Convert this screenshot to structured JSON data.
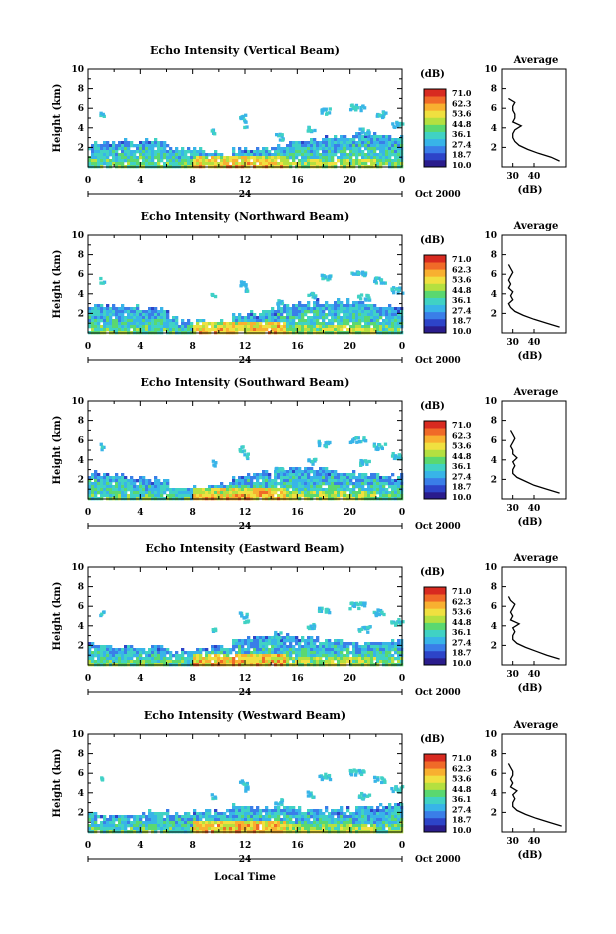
{
  "figure": {
    "xaxis_label": "Local Time",
    "day_label": "24",
    "month_year_label": "Oct 2000",
    "avg_title": "Average",
    "avg_unit": "(dB)",
    "colorbar_unit": "(dB)",
    "ylabel": "Height (km)"
  },
  "colorbar": {
    "tick_labels": [
      "71.0",
      "62.3",
      "53.6",
      "44.8",
      "36.1",
      "27.4",
      "18.7",
      "10.0"
    ],
    "colors": [
      "#2a1c8c",
      "#2d44c8",
      "#3a7ee8",
      "#38b4e8",
      "#40d2c4",
      "#5ad870",
      "#b4e040",
      "#f0e040",
      "#f8b030",
      "#f06a28",
      "#d82a20"
    ]
  },
  "chart_data": [
    {
      "type": "heatmap",
      "title": "Echo Intensity (Vertical Beam)",
      "xlabel": "Local Time",
      "ylabel": "Height (km)",
      "xlim": [
        0,
        24
      ],
      "ylim": [
        0,
        10
      ],
      "x_ticks": [
        "0",
        "4",
        "8",
        "12",
        "16",
        "20",
        "0"
      ],
      "y_ticks": [
        "2",
        "4",
        "6",
        "8",
        "10"
      ],
      "zlim": [
        10.0,
        71.0
      ],
      "zlabel": "(dB)",
      "average_profile": {
        "xlim": [
          25,
          55
        ],
        "x_ticks": [
          "30",
          "40"
        ],
        "height_km": [
          0.6,
          1.0,
          1.4,
          1.8,
          2.2,
          2.6,
          3.0,
          3.4,
          3.8,
          4.2,
          4.6,
          5.0,
          5.4,
          5.8,
          6.2,
          6.6,
          7.0
        ],
        "db": [
          52,
          48,
          42,
          37,
          33,
          31,
          30,
          30,
          31,
          34,
          30,
          31,
          31,
          30,
          30,
          31,
          28
        ]
      }
    },
    {
      "type": "heatmap",
      "title": "Echo Intensity (Northward Beam)",
      "xlabel": "Local Time",
      "ylabel": "Height (km)",
      "xlim": [
        0,
        24
      ],
      "ylim": [
        0,
        10
      ],
      "x_ticks": [
        "0",
        "4",
        "8",
        "12",
        "16",
        "20",
        "0"
      ],
      "y_ticks": [
        "2",
        "4",
        "6",
        "8",
        "10"
      ],
      "zlim": [
        10.0,
        71.0
      ],
      "zlabel": "(dB)",
      "average_profile": {
        "xlim": [
          25,
          55
        ],
        "x_ticks": [
          "30",
          "40"
        ],
        "height_km": [
          0.6,
          1.0,
          1.4,
          1.8,
          2.2,
          2.6,
          3.0,
          3.4,
          3.8,
          4.2,
          4.6,
          5.0,
          5.4,
          5.8,
          6.2,
          6.6,
          7.0
        ],
        "db": [
          52,
          46,
          40,
          35,
          31,
          29,
          28,
          30,
          29,
          30,
          28,
          29,
          28,
          29,
          30,
          29,
          28
        ]
      }
    },
    {
      "type": "heatmap",
      "title": "Echo Intensity (Southward Beam)",
      "xlabel": "Local Time",
      "ylabel": "Height (km)",
      "xlim": [
        0,
        24
      ],
      "ylim": [
        0,
        10
      ],
      "x_ticks": [
        "0",
        "4",
        "8",
        "12",
        "16",
        "20",
        "0"
      ],
      "y_ticks": [
        "2",
        "4",
        "6",
        "8",
        "10"
      ],
      "zlim": [
        10.0,
        71.0
      ],
      "zlabel": "(dB)",
      "average_profile": {
        "xlim": [
          25,
          55
        ],
        "x_ticks": [
          "30",
          "40"
        ],
        "height_km": [
          0.6,
          1.0,
          1.4,
          1.8,
          2.2,
          2.6,
          3.0,
          3.4,
          3.8,
          4.2,
          4.6,
          5.0,
          5.4,
          5.8,
          6.2,
          6.6,
          7.0
        ],
        "db": [
          52,
          46,
          40,
          36,
          32,
          30,
          30,
          31,
          30,
          32,
          30,
          30,
          29,
          30,
          31,
          30,
          29
        ]
      }
    },
    {
      "type": "heatmap",
      "title": "Echo Intensity (Eastward Beam)",
      "xlabel": "Local Time",
      "ylabel": "Height (km)",
      "xlim": [
        0,
        24
      ],
      "ylim": [
        0,
        10
      ],
      "x_ticks": [
        "0",
        "4",
        "8",
        "12",
        "16",
        "20",
        "0"
      ],
      "y_ticks": [
        "2",
        "4",
        "6",
        "8",
        "10"
      ],
      "zlim": [
        10.0,
        71.0
      ],
      "zlabel": "(dB)",
      "average_profile": {
        "xlim": [
          25,
          55
        ],
        "x_ticks": [
          "30",
          "40"
        ],
        "height_km": [
          0.6,
          1.0,
          1.4,
          1.8,
          2.2,
          2.6,
          3.0,
          3.4,
          3.8,
          4.2,
          4.6,
          5.0,
          5.4,
          5.8,
          6.2,
          6.6,
          7.0
        ],
        "db": [
          52,
          46,
          41,
          36,
          32,
          30,
          30,
          31,
          30,
          33,
          29,
          30,
          29,
          30,
          31,
          29,
          28
        ]
      }
    },
    {
      "type": "heatmap",
      "title": "Echo Intensity (Westward Beam)",
      "xlabel": "Local Time",
      "ylabel": "Height (km)",
      "xlim": [
        0,
        24
      ],
      "ylim": [
        0,
        10
      ],
      "x_ticks": [
        "0",
        "4",
        "8",
        "12",
        "16",
        "20",
        "0"
      ],
      "y_ticks": [
        "2",
        "4",
        "6",
        "8",
        "10"
      ],
      "zlim": [
        10.0,
        71.0
      ],
      "zlabel": "(dB)",
      "average_profile": {
        "xlim": [
          25,
          55
        ],
        "x_ticks": [
          "30",
          "40"
        ],
        "height_km": [
          0.6,
          1.0,
          1.4,
          1.8,
          2.2,
          2.6,
          3.0,
          3.4,
          3.8,
          4.2,
          4.6,
          5.0,
          5.4,
          5.8,
          6.2,
          6.6,
          7.0
        ],
        "db": [
          53,
          47,
          41,
          36,
          32,
          30,
          30,
          31,
          30,
          32,
          29,
          30,
          29,
          30,
          30,
          29,
          28
        ]
      }
    }
  ]
}
